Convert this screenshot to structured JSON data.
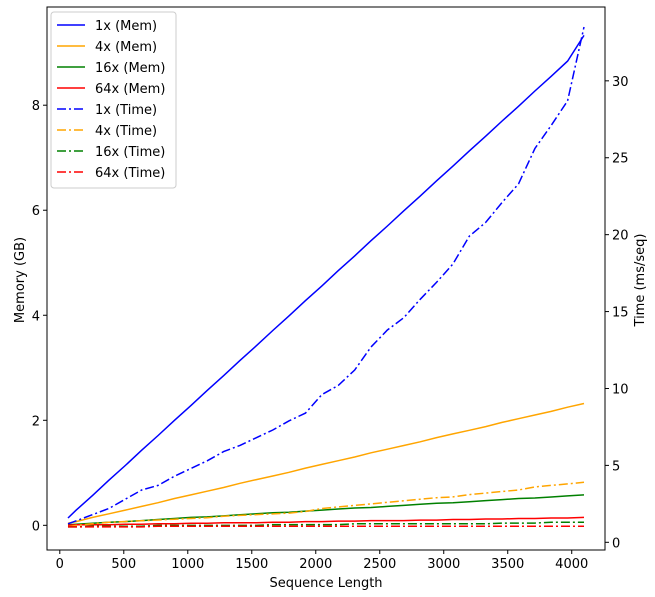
{
  "chart_data": {
    "type": "line",
    "title": "",
    "xlabel": "Sequence Length",
    "ylabel_left": "Memory (GB)",
    "ylabel_right": "Time (ms/seq)",
    "xlim": [
      -100,
      4260
    ],
    "ylim_left": [
      -0.47,
      9.87
    ],
    "ylim_right": [
      -0.5,
      34.8
    ],
    "x_ticks": [
      0,
      500,
      1000,
      1500,
      2000,
      2500,
      3000,
      3500,
      4000
    ],
    "y_ticks_left": [
      0,
      2,
      4,
      6,
      8
    ],
    "y_ticks_right": [
      0,
      5,
      10,
      15,
      20,
      25,
      30
    ],
    "grid": false,
    "legend_position": "top-left",
    "x": [
      64,
      128,
      256,
      384,
      512,
      640,
      768,
      896,
      1024,
      1152,
      1280,
      1408,
      1536,
      1664,
      1792,
      1920,
      2048,
      2176,
      2304,
      2432,
      2560,
      2688,
      2816,
      2944,
      3072,
      3200,
      3328,
      3456,
      3584,
      3712,
      3840,
      3968,
      4096
    ],
    "series": [
      {
        "name": "1x (Mem)",
        "axis": "left",
        "style": "solid",
        "color": "#0000ff",
        "values": [
          0.14,
          0.29,
          0.57,
          0.86,
          1.14,
          1.43,
          1.71,
          2.0,
          2.28,
          2.57,
          2.85,
          3.14,
          3.42,
          3.71,
          3.99,
          4.28,
          4.56,
          4.85,
          5.13,
          5.42,
          5.7,
          5.99,
          6.27,
          6.56,
          6.84,
          7.13,
          7.41,
          7.7,
          7.98,
          8.27,
          8.55,
          8.84,
          9.33
        ]
      },
      {
        "name": "4x (Mem)",
        "axis": "left",
        "style": "solid",
        "color": "#ffa500",
        "values": [
          0.04,
          0.07,
          0.15,
          0.22,
          0.29,
          0.36,
          0.43,
          0.51,
          0.58,
          0.65,
          0.72,
          0.8,
          0.87,
          0.94,
          1.01,
          1.09,
          1.16,
          1.23,
          1.3,
          1.38,
          1.45,
          1.52,
          1.59,
          1.67,
          1.74,
          1.81,
          1.88,
          1.96,
          2.03,
          2.1,
          2.17,
          2.25,
          2.32
        ]
      },
      {
        "name": "16x (Mem)",
        "axis": "left",
        "style": "solid",
        "color": "#008000",
        "values": [
          0.01,
          0.02,
          0.04,
          0.06,
          0.07,
          0.09,
          0.11,
          0.13,
          0.15,
          0.16,
          0.18,
          0.2,
          0.22,
          0.24,
          0.25,
          0.27,
          0.29,
          0.31,
          0.33,
          0.34,
          0.36,
          0.38,
          0.4,
          0.42,
          0.43,
          0.45,
          0.47,
          0.49,
          0.51,
          0.52,
          0.54,
          0.56,
          0.58
        ]
      },
      {
        "name": "64x (Mem)",
        "axis": "left",
        "style": "solid",
        "color": "#ff0000",
        "values": [
          0.0,
          0.01,
          0.01,
          0.01,
          0.02,
          0.02,
          0.03,
          0.03,
          0.04,
          0.04,
          0.05,
          0.05,
          0.05,
          0.06,
          0.06,
          0.07,
          0.07,
          0.08,
          0.08,
          0.09,
          0.09,
          0.09,
          0.1,
          0.1,
          0.11,
          0.11,
          0.12,
          0.12,
          0.13,
          0.13,
          0.14,
          0.14,
          0.15
        ]
      },
      {
        "name": "1x (Time)",
        "axis": "right",
        "style": "dashdot",
        "color": "#0000ff",
        "values": [
          1.2,
          1.4,
          1.8,
          2.2,
          2.8,
          3.4,
          3.7,
          4.3,
          4.8,
          5.3,
          5.9,
          6.3,
          6.8,
          7.3,
          7.9,
          8.4,
          9.6,
          10.2,
          11.2,
          12.7,
          13.8,
          14.6,
          15.8,
          16.9,
          18.1,
          19.9,
          20.8,
          22.1,
          23.3,
          25.6,
          27.1,
          28.7,
          33.5
        ]
      },
      {
        "name": "4x (Time)",
        "axis": "right",
        "style": "dashdot",
        "color": "#ffa500",
        "values": [
          1.0,
          1.1,
          1.2,
          1.3,
          1.35,
          1.4,
          1.45,
          1.5,
          1.55,
          1.6,
          1.7,
          1.75,
          1.8,
          1.85,
          1.9,
          2.0,
          2.2,
          2.3,
          2.4,
          2.5,
          2.6,
          2.7,
          2.8,
          2.9,
          2.95,
          3.1,
          3.2,
          3.3,
          3.4,
          3.6,
          3.7,
          3.8,
          3.9
        ]
      },
      {
        "name": "16x (Time)",
        "axis": "right",
        "style": "dashdot",
        "color": "#008000",
        "values": [
          1.0,
          1.0,
          1.05,
          1.05,
          1.05,
          1.05,
          1.1,
          1.1,
          1.1,
          1.1,
          1.1,
          1.1,
          1.1,
          1.15,
          1.15,
          1.15,
          1.15,
          1.15,
          1.2,
          1.2,
          1.2,
          1.2,
          1.2,
          1.2,
          1.2,
          1.2,
          1.2,
          1.25,
          1.25,
          1.25,
          1.3,
          1.3,
          1.3
        ]
      },
      {
        "name": "64x (Time)",
        "axis": "right",
        "style": "dashdot",
        "color": "#ff0000",
        "values": [
          1.0,
          1.0,
          1.0,
          1.0,
          1.0,
          1.0,
          1.05,
          1.05,
          1.05,
          1.05,
          1.05,
          1.05,
          1.05,
          1.05,
          1.05,
          1.05,
          1.05,
          1.05,
          1.05,
          1.05,
          1.05,
          1.05,
          1.05,
          1.05,
          1.05,
          1.05,
          1.05,
          1.05,
          1.05,
          1.05,
          1.05,
          1.05,
          1.05
        ]
      }
    ]
  }
}
